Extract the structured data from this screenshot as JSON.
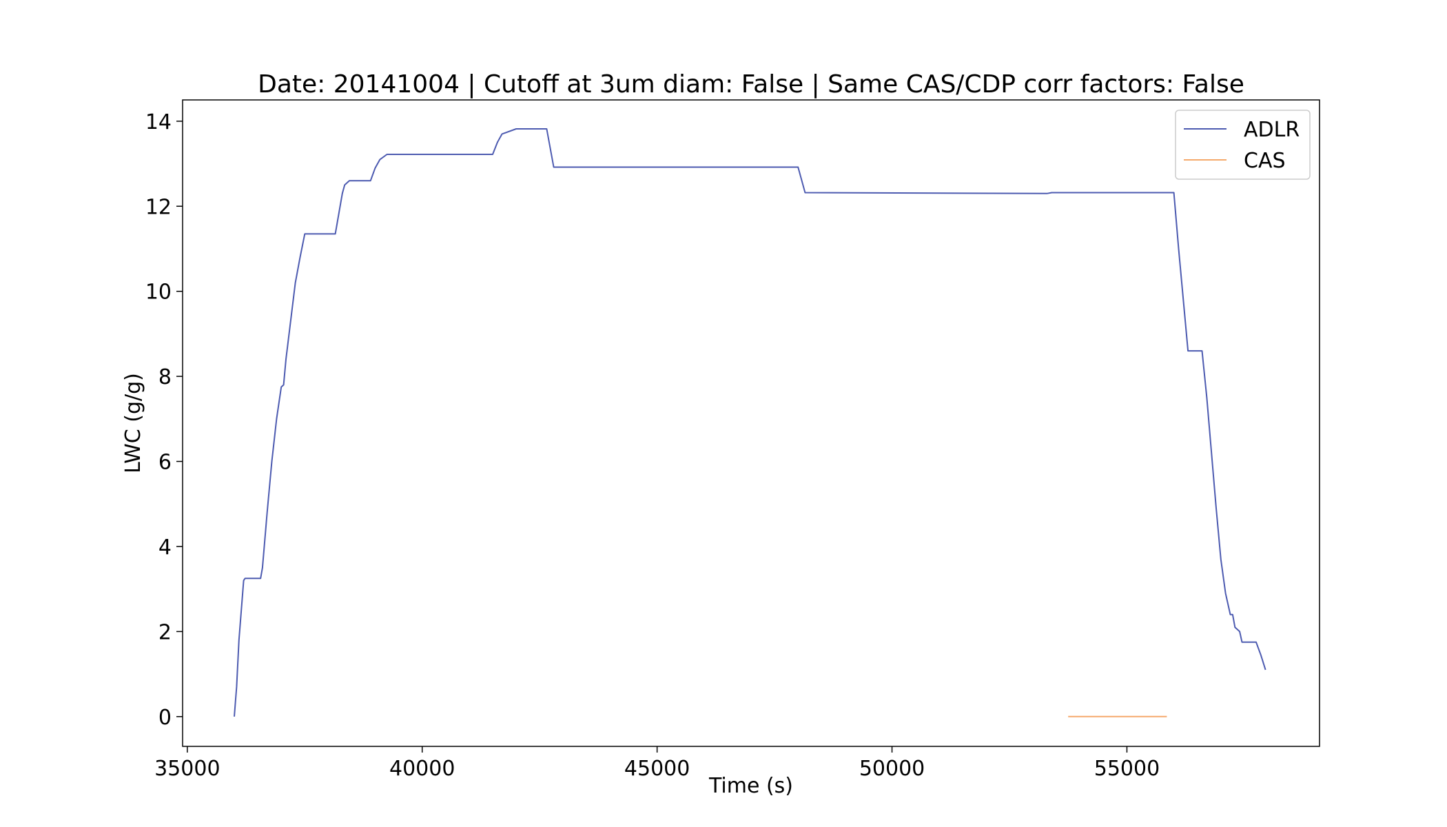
{
  "chart_data": {
    "type": "line",
    "title": "Date: 20141004 | Cutoff at 3um diam: False | Same CAS/CDP corr factors: False",
    "xlabel": "Time (s)",
    "ylabel": "LWC (g/g)",
    "xlim": [
      34900,
      59100
    ],
    "ylim": [
      -0.7,
      14.5
    ],
    "xticks": [
      35000,
      40000,
      45000,
      50000,
      55000
    ],
    "yticks": [
      0,
      2,
      4,
      6,
      8,
      10,
      12,
      14
    ],
    "grid": false,
    "legend_position": "top-right",
    "series": [
      {
        "name": "ADLR",
        "color": "#4c5ab0",
        "x": [
          36000,
          36050,
          36100,
          36200,
          36230,
          36560,
          36600,
          36700,
          36800,
          36900,
          37000,
          37050,
          37100,
          37200,
          37300,
          37400,
          37500,
          37700,
          38150,
          38300,
          38350,
          38450,
          38500,
          38900,
          39000,
          39100,
          39250,
          41500,
          41600,
          41700,
          42000,
          42650,
          42800,
          48000,
          48150,
          53300,
          53400,
          56000,
          56100,
          56200,
          56300,
          56400,
          56600,
          56700,
          56800,
          56900,
          57000,
          57100,
          57200,
          57250,
          57300,
          57350,
          57400,
          57450,
          57550,
          57750,
          57800,
          57850,
          57950
        ],
        "y": [
          0,
          0.7,
          1.8,
          3.2,
          3.25,
          3.25,
          3.5,
          4.8,
          6.0,
          7.0,
          7.75,
          7.8,
          8.4,
          9.3,
          10.2,
          10.8,
          11.35,
          11.35,
          11.35,
          12.3,
          12.5,
          12.6,
          12.6,
          12.6,
          12.9,
          13.1,
          13.22,
          13.22,
          13.5,
          13.7,
          13.82,
          13.82,
          12.92,
          12.92,
          12.32,
          12.3,
          12.32,
          12.32,
          11.0,
          9.8,
          8.6,
          8.6,
          8.6,
          7.5,
          6.2,
          4.9,
          3.7,
          2.9,
          2.4,
          2.4,
          2.1,
          2.05,
          2.0,
          1.75,
          1.75,
          1.75,
          1.6,
          1.45,
          1.1
        ]
      },
      {
        "name": "CAS",
        "color": "#f5a96b",
        "x": [
          53750,
          55850
        ],
        "y": [
          0,
          0
        ]
      }
    ]
  }
}
